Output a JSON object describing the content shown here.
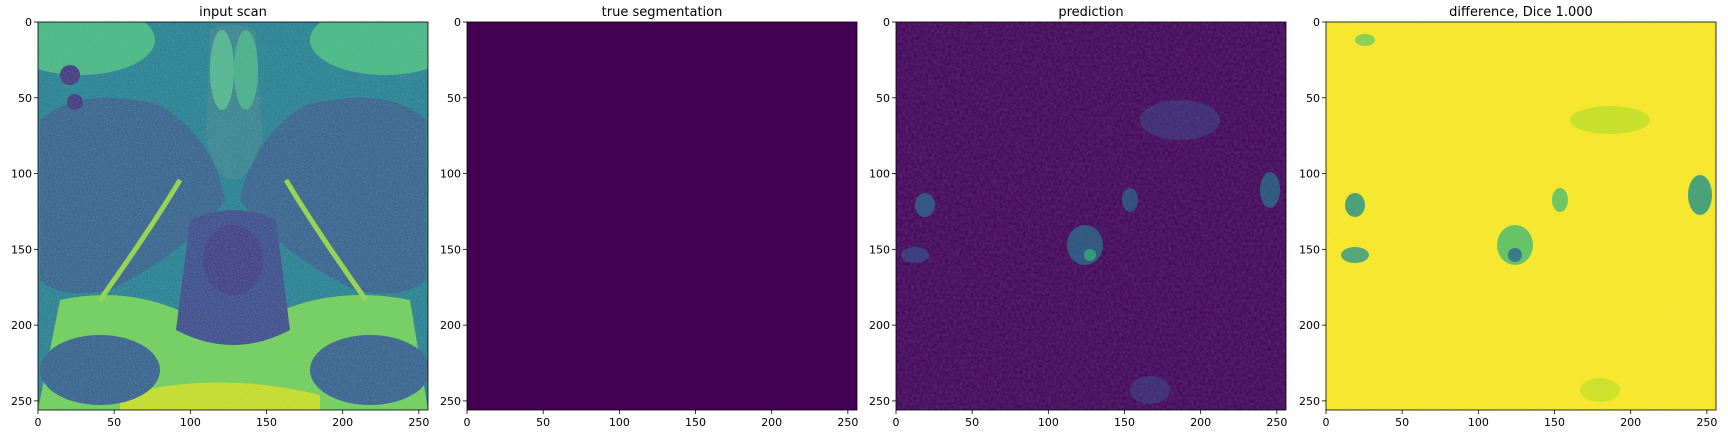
{
  "figure": {
    "panels": [
      {
        "id": "input-scan",
        "title": "input scan",
        "image": "mri-pelvis-axial-scan"
      },
      {
        "id": "true-segmentation",
        "title": "true segmentation",
        "image": "uniform-dark-purple-mask",
        "fill_color": "#440154"
      },
      {
        "id": "prediction",
        "title": "prediction",
        "image": "dark-purple-noisy-prediction"
      },
      {
        "id": "difference",
        "title": "difference, Dice 1.000",
        "image": "yellow-difference-map",
        "fill_color": "#fde725"
      }
    ]
  },
  "chart_data": [
    {
      "type": "heatmap",
      "title": "input scan",
      "xlabel": "",
      "ylabel": "",
      "xlim": [
        0,
        256
      ],
      "ylim": [
        256,
        0
      ],
      "xticks": [
        0,
        50,
        100,
        150,
        200,
        250
      ],
      "yticks": [
        0,
        50,
        100,
        150,
        200,
        250
      ],
      "colormap": "viridis",
      "grid": false
    },
    {
      "type": "heatmap",
      "title": "true segmentation",
      "xlabel": "",
      "ylabel": "",
      "xlim": [
        0,
        256
      ],
      "ylim": [
        256,
        0
      ],
      "xticks": [
        0,
        50,
        100,
        150,
        200,
        250
      ],
      "yticks": [
        0,
        50,
        100,
        150,
        200,
        250
      ],
      "colormap": "viridis",
      "grid": false
    },
    {
      "type": "heatmap",
      "title": "prediction",
      "xlabel": "",
      "ylabel": "",
      "xlim": [
        0,
        256
      ],
      "ylim": [
        256,
        0
      ],
      "xticks": [
        0,
        50,
        100,
        150,
        200,
        250
      ],
      "yticks": [
        0,
        50,
        100,
        150,
        200,
        250
      ],
      "colormap": "viridis",
      "grid": false
    },
    {
      "type": "heatmap",
      "title": "difference, Dice 1.000",
      "xlabel": "",
      "ylabel": "",
      "xlim": [
        0,
        256
      ],
      "ylim": [
        256,
        0
      ],
      "xticks": [
        0,
        50,
        100,
        150,
        200,
        250
      ],
      "yticks": [
        0,
        50,
        100,
        150,
        200,
        250
      ],
      "colormap": "viridis",
      "grid": false
    }
  ],
  "colors": {
    "viridis_dark": "#440154",
    "viridis_blue": "#31688e",
    "viridis_teal": "#21918c",
    "viridis_green": "#5ec962",
    "viridis_yellow": "#fde725"
  }
}
